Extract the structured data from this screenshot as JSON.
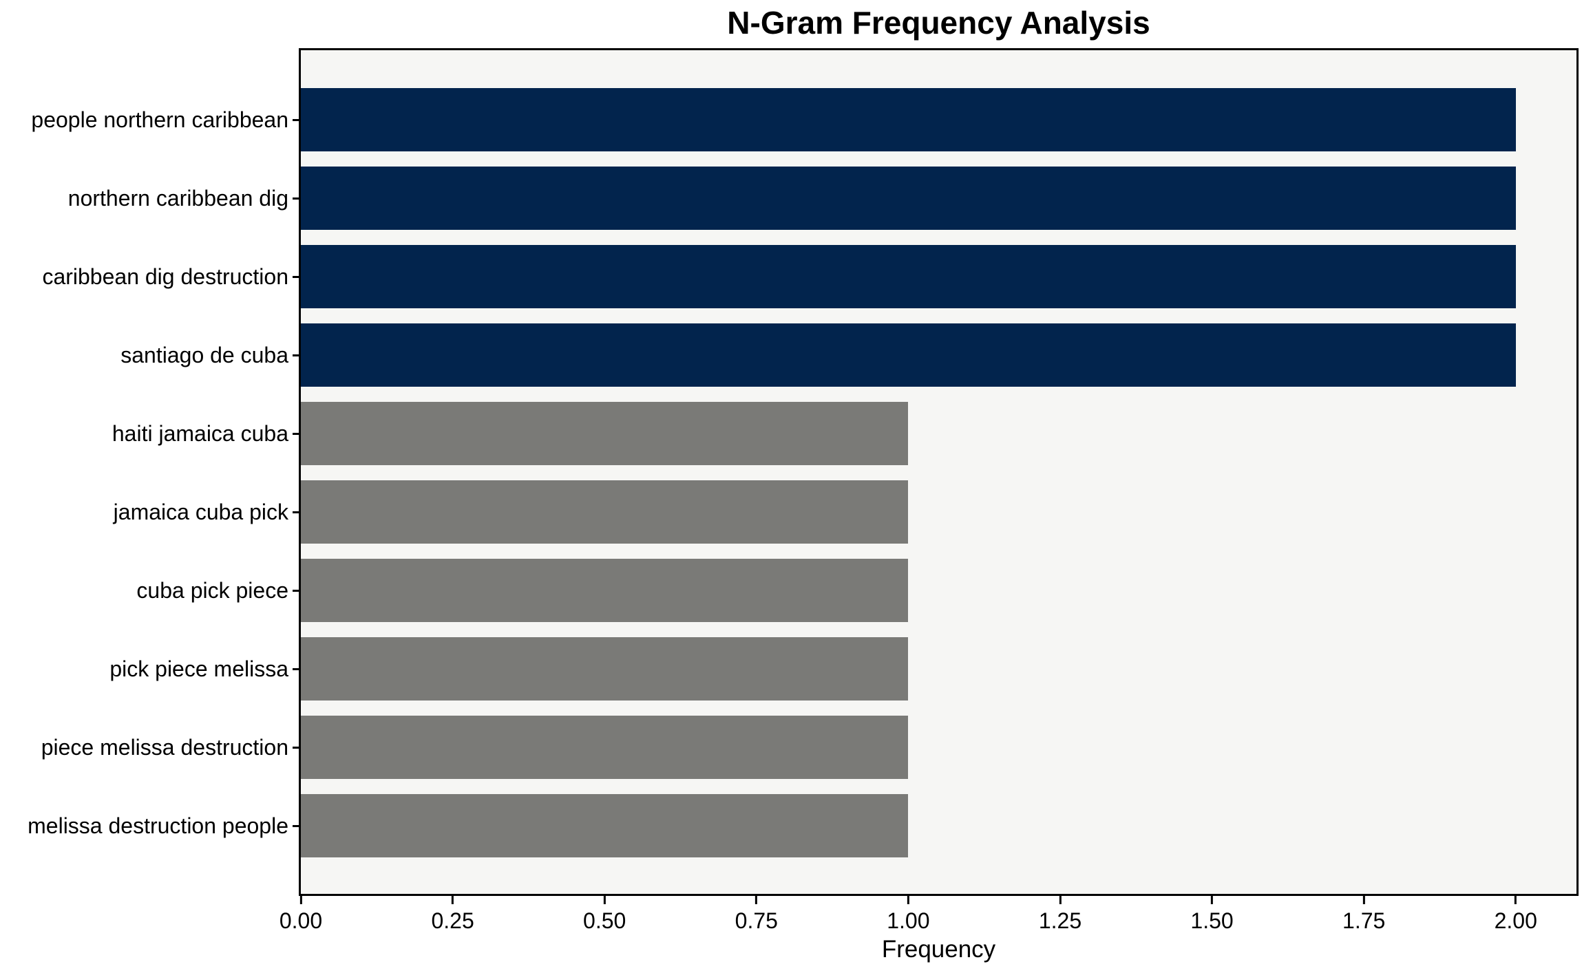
{
  "chart_data": {
    "type": "bar",
    "orientation": "horizontal",
    "title": "N-Gram Frequency Analysis",
    "xlabel": "Frequency",
    "ylabel": "",
    "categories": [
      "people northern caribbean",
      "northern caribbean dig",
      "caribbean dig destruction",
      "santiago de cuba",
      "haiti jamaica cuba",
      "jamaica cuba pick",
      "cuba pick piece",
      "pick piece melissa",
      "piece melissa destruction",
      "melissa destruction people"
    ],
    "values": [
      2,
      2,
      2,
      2,
      1,
      1,
      1,
      1,
      1,
      1
    ],
    "bar_colors": [
      "#02244d",
      "#02244d",
      "#02244d",
      "#02244d",
      "#7a7a77",
      "#7a7a77",
      "#7a7a77",
      "#7a7a77",
      "#7a7a77",
      "#7a7a77"
    ],
    "xlim": [
      0,
      2.1
    ],
    "xticks": [
      {
        "value": 0.0,
        "label": "0.00"
      },
      {
        "value": 0.25,
        "label": "0.25"
      },
      {
        "value": 0.5,
        "label": "0.50"
      },
      {
        "value": 0.75,
        "label": "0.75"
      },
      {
        "value": 1.0,
        "label": "1.00"
      },
      {
        "value": 1.25,
        "label": "1.25"
      },
      {
        "value": 1.5,
        "label": "1.50"
      },
      {
        "value": 1.75,
        "label": "1.75"
      },
      {
        "value": 2.0,
        "label": "2.00"
      }
    ],
    "grid": false,
    "legend": null,
    "colors": {
      "highlight_bar": "#02244d",
      "muted_bar": "#7a7a77",
      "plot_background": "#f6f6f4",
      "figure_background": "#ffffff",
      "spine": "#000000",
      "text": "#000000"
    }
  }
}
